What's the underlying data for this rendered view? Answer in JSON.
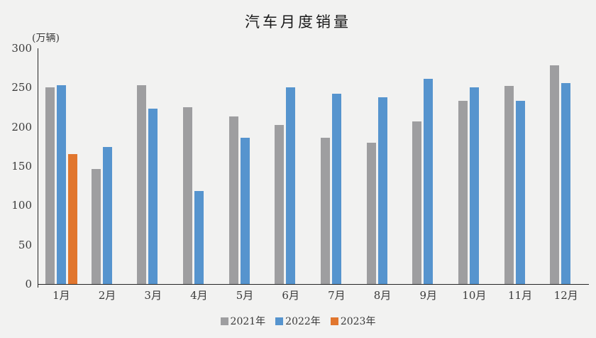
{
  "title": "汽车月度销量",
  "unit_label": "(万辆)",
  "colors": {
    "series_2021": "#9e9ea0",
    "series_2022": "#5694ce",
    "series_2023": "#e1762e",
    "axis": "#262626",
    "background": "#f2f2f1",
    "text": "#3a3a3a"
  },
  "legend": {
    "items": [
      {
        "label": "2021年",
        "color": "#9e9ea0"
      },
      {
        "label": "2022年",
        "color": "#5694ce"
      },
      {
        "label": "2023年",
        "color": "#e1762e"
      }
    ]
  },
  "chart_data": {
    "type": "bar",
    "title": "汽车月度销量",
    "ylabel": "(万辆)",
    "categories": [
      "1月",
      "2月",
      "3月",
      "4月",
      "5月",
      "6月",
      "7月",
      "8月",
      "9月",
      "10月",
      "11月",
      "12月"
    ],
    "series": [
      {
        "name": "2021年",
        "color": "#9e9ea0",
        "values": [
          250,
          146,
          253,
          225,
          213,
          202,
          186,
          180,
          207,
          233,
          252,
          278
        ]
      },
      {
        "name": "2022年",
        "color": "#5694ce",
        "values": [
          253,
          174,
          223,
          118,
          186,
          250,
          242,
          238,
          261,
          250,
          233,
          256
        ]
      },
      {
        "name": "2023年",
        "color": "#e1762e",
        "values": [
          165,
          null,
          null,
          null,
          null,
          null,
          null,
          null,
          null,
          null,
          null,
          null
        ]
      }
    ],
    "ylim": [
      0,
      300
    ],
    "yticks": [
      0,
      50,
      100,
      150,
      200,
      250,
      300
    ],
    "grid": false,
    "legend_position": "bottom"
  }
}
